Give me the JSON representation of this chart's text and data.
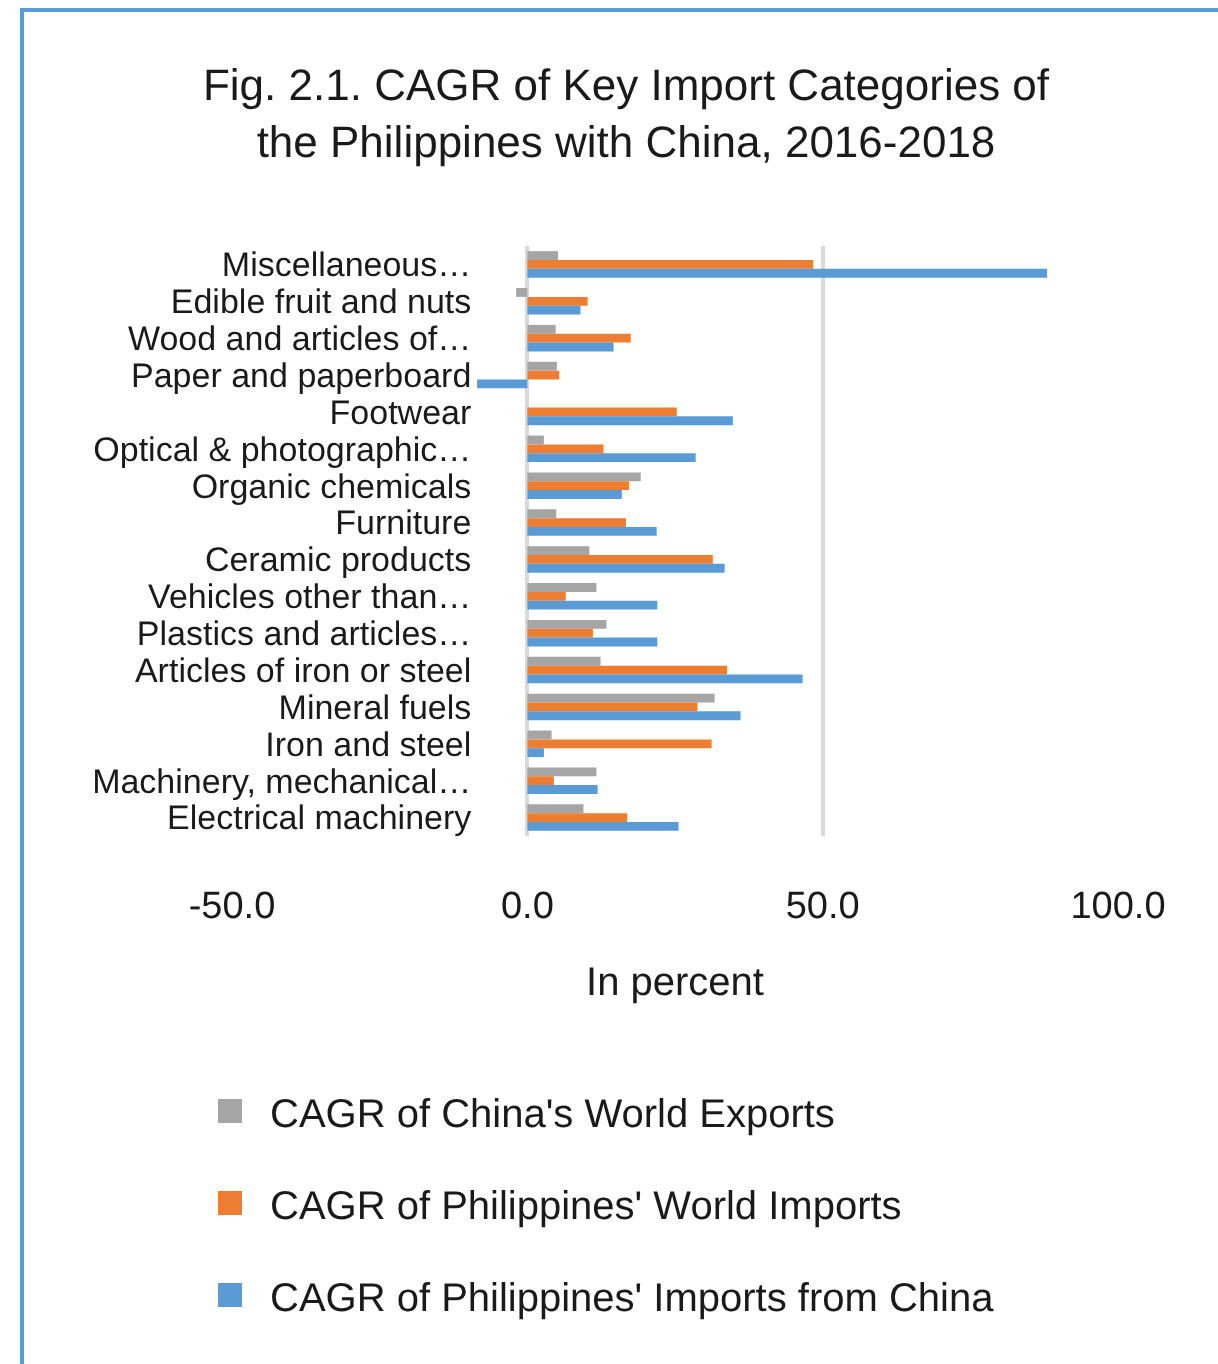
{
  "chart_data": {
    "type": "bar",
    "orientation": "horizontal",
    "title": "Fig. 2.1. CAGR of Key Import Categories of the Philippines with China, 2016-2018",
    "xlabel": "In percent",
    "categories": [
      "Miscellaneous…",
      "Edible fruit and nuts",
      "Wood and articles of…",
      "Paper and paperboard",
      "Footwear",
      "Optical & photographic…",
      "Organic chemicals",
      "Furniture",
      "Ceramic products",
      "Vehicles other than…",
      "Plastics and articles…",
      "Articles of iron or steel",
      "Mineral fuels",
      "Iron and steel",
      "Machinery, mechanical…",
      "Electrical machinery"
    ],
    "series": [
      {
        "name": "CAGR of China's World Exports",
        "color": "#a5a5a5",
        "values": [
          5.2,
          -1.9,
          4.8,
          5.0,
          null,
          2.8,
          19.2,
          4.9,
          10.5,
          11.7,
          13.4,
          12.4,
          31.7,
          4.1,
          11.7,
          9.5
        ]
      },
      {
        "name": "CAGR of Philippines' World Imports",
        "color": "#ed7d31",
        "values": [
          48.4,
          10.2,
          17.5,
          5.4,
          25.3,
          12.9,
          17.2,
          16.7,
          31.4,
          6.5,
          11.1,
          33.8,
          28.8,
          31.2,
          4.5,
          16.9
        ]
      },
      {
        "name": "CAGR of Philippines' Imports from China",
        "color": "#5b9bd5",
        "values": [
          88.0,
          9.0,
          14.6,
          -8.5,
          34.8,
          28.5,
          16.0,
          21.9,
          33.4,
          22.0,
          22.0,
          46.6,
          36.1,
          2.8,
          11.9,
          25.6
        ]
      }
    ],
    "xlim": [
      -50,
      100
    ],
    "xticks": [
      {
        "value": -50,
        "label": "-50.0"
      },
      {
        "value": 0,
        "label": "0.0"
      },
      {
        "value": 50,
        "label": "50.0"
      },
      {
        "value": 100,
        "label": "100.0"
      }
    ],
    "grid": "x",
    "legend": "bottom"
  }
}
